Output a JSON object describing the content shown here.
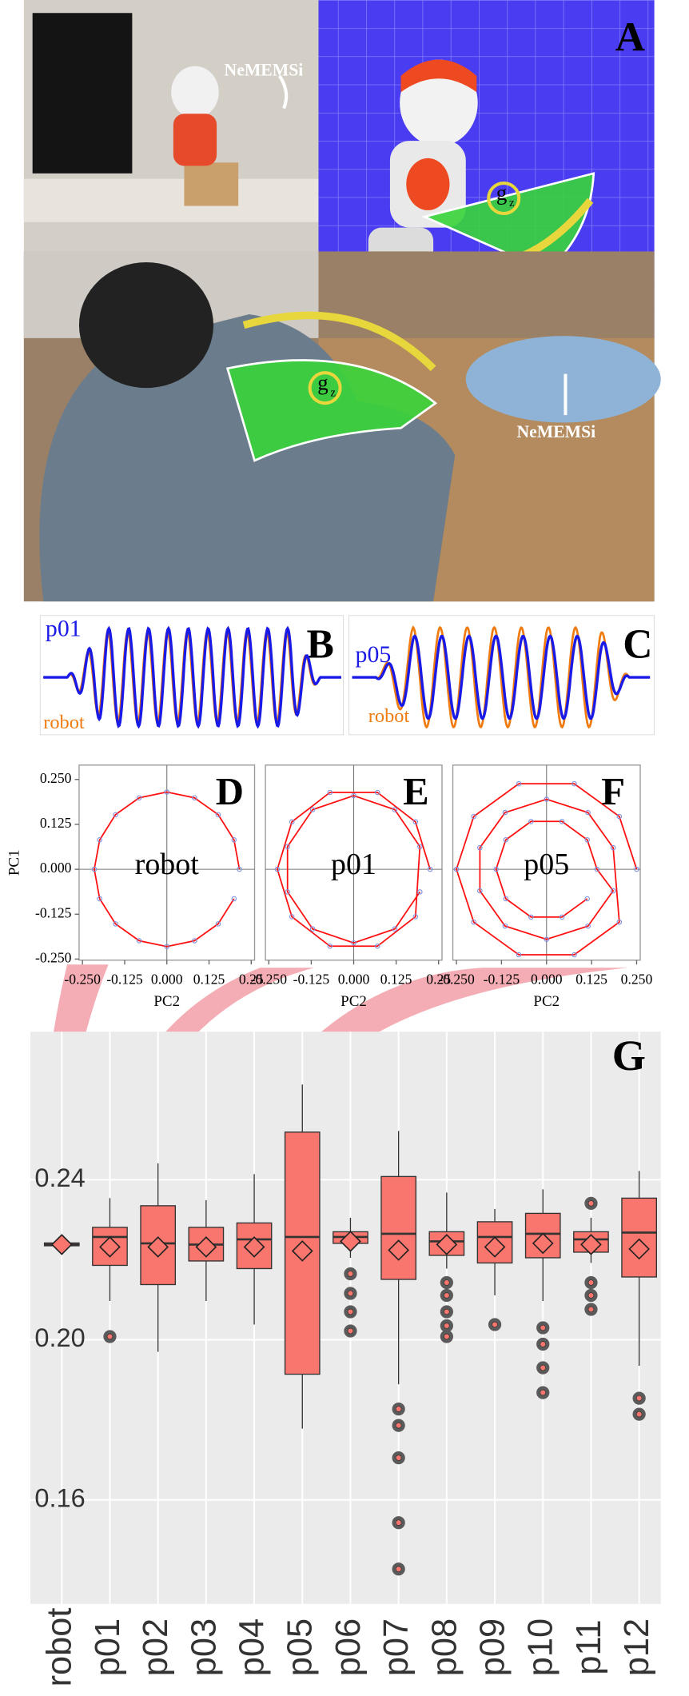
{
  "figure": {
    "panel_labels": [
      "A",
      "B",
      "C"
    ],
    "photo_labels": [
      "NeMEMSi",
      "NeMEMSi"
    ],
    "gyro": "g",
    "gyro_sub": "z",
    "trace_labels_b": [
      "p01",
      "robot"
    ],
    "trace_labels_c": [
      "p05",
      "robot"
    ]
  },
  "chart_data": [
    {
      "type": "pca",
      "panel": "D",
      "annotation": "robot",
      "xlabel": "PC2",
      "ylabel": "PC1",
      "xlim": [
        -0.26,
        0.26
      ],
      "ylim": [
        -0.253,
        0.29
      ],
      "xticks": [
        {
          "value": -0.25,
          "label": "-0.250"
        },
        {
          "value": -0.125,
          "label": "-0.125"
        },
        {
          "value": 0,
          "label": "0.000"
        },
        {
          "value": 0.125,
          "label": "0.125"
        },
        0.25
      ],
      "yticks": [
        {
          "value": 0.25,
          "label": "0.250"
        },
        {
          "value": 0.125,
          "label": "0.125"
        },
        {
          "value": 0,
          "label": "0.000"
        },
        {
          "value": -0.125,
          "label": "-0.125"
        },
        {
          "value": -0.25,
          "label": "-0.250"
        }
      ],
      "series": [
        {
          "color": "#ff1010",
          "point_color": "#7f8fe0",
          "x": [
            0.215,
            0.199,
            0.152,
            0.082,
            0,
            -0.082,
            -0.152,
            -0.199,
            -0.215,
            -0.199,
            -0.152,
            -0.082,
            0,
            0.082,
            0.152,
            0.199
          ],
          "y": [
            0,
            0.082,
            0.152,
            0.199,
            0.215,
            0.199,
            0.152,
            0.082,
            0,
            -0.082,
            -0.152,
            -0.199,
            -0.215,
            -0.199,
            -0.152,
            -0.082
          ]
        }
      ]
    },
    {
      "type": "pca",
      "panel": "E",
      "annotation": "p01",
      "xlabel": "PC2",
      "xlim": [
        -0.26,
        0.26
      ],
      "ylim": [
        -0.253,
        0.29
      ],
      "xticks": [
        {
          "value": -0.25,
          "label": "-0.250"
        },
        {
          "value": -0.125,
          "label": "-0.125"
        },
        {
          "value": 0,
          "label": "0.000"
        },
        {
          "value": 0.125,
          "label": "0.125"
        },
        0.25
      ],
      "series": [
        {
          "color": "#ff1010",
          "point_color": "#7f8fe0",
          "x": [
            0.225,
            0.182,
            0.07,
            -0.07,
            -0.182,
            -0.225,
            -0.182,
            -0.07,
            0.07,
            0.182,
            0.195,
            0.121,
            0,
            -0.121,
            -0.195,
            -0.195,
            -0.121,
            0,
            0.121,
            0.195
          ],
          "y": [
            0,
            0.132,
            0.214,
            0.214,
            0.132,
            0,
            -0.132,
            -0.214,
            -0.214,
            -0.132,
            0.063,
            0.166,
            0.205,
            0.166,
            0.063,
            -0.063,
            -0.166,
            -0.205,
            -0.166,
            -0.063
          ]
        }
      ]
    },
    {
      "type": "pca",
      "panel": "F",
      "annotation": "p05",
      "xlabel": "PC2",
      "xlim": [
        -0.26,
        0.26
      ],
      "ylim": [
        -0.253,
        0.29
      ],
      "xticks": [
        {
          "value": -0.25,
          "label": "-0.250"
        },
        {
          "value": -0.125,
          "label": "-0.125"
        },
        {
          "value": 0,
          "label": "0.000"
        },
        {
          "value": 0.125,
          "label": "0.125"
        },
        {
          "value": 0.25,
          "label": "0.250"
        }
      ],
      "series": [
        {
          "color": "#ff1010",
          "point_color": "#7f8fe0",
          "x": [
            0.25,
            0.202,
            0.077,
            -0.077,
            -0.202,
            -0.25,
            -0.202,
            -0.077,
            0.077,
            0.202,
            0.185,
            0.115,
            0,
            -0.115,
            -0.185,
            -0.185,
            -0.115,
            0,
            0.115,
            0.185,
            0.14,
            0.113,
            0.043,
            -0.043,
            -0.113,
            -0.14,
            -0.113,
            -0.043,
            0.043,
            0.113
          ],
          "y": [
            0,
            0.147,
            0.238,
            0.238,
            0.147,
            0,
            -0.147,
            -0.238,
            -0.238,
            -0.147,
            0.06,
            0.158,
            0.195,
            0.158,
            0.06,
            -0.06,
            -0.158,
            -0.195,
            -0.158,
            -0.06,
            0,
            0.082,
            0.133,
            0.133,
            0.082,
            0,
            -0.082,
            -0.133,
            -0.133,
            -0.082
          ]
        }
      ]
    },
    {
      "type": "box",
      "panel": "G",
      "color": "#f8766d",
      "outlier_color": "#5a5a5a",
      "grid": true,
      "categories": [
        "robot",
        "p01",
        "p02",
        "p03",
        "p04",
        "p05",
        "p06",
        "p07",
        "p08",
        "p09",
        "p10",
        "p11",
        "p12"
      ],
      "whislo": [
        0.2228,
        0.2097,
        0.197,
        0.2097,
        0.2038,
        0.1778,
        0.2205,
        0.1889,
        0.2178,
        0.2111,
        0.2097,
        0.2192,
        0.1935
      ],
      "q1": [
        0.2235,
        0.2186,
        0.2138,
        0.2197,
        0.2178,
        0.1914,
        0.2241,
        0.2151,
        0.2211,
        0.2192,
        0.2205,
        0.2219,
        0.2157
      ],
      "med": [
        0.2238,
        0.2257,
        0.2241,
        0.2238,
        0.2251,
        0.2257,
        0.2257,
        0.2265,
        0.2246,
        0.2257,
        0.2265,
        0.2251,
        0.2268
      ],
      "q3": [
        0.2242,
        0.2281,
        0.2335,
        0.2281,
        0.2292,
        0.2519,
        0.227,
        0.2408,
        0.227,
        0.2295,
        0.2316,
        0.227,
        0.2354
      ],
      "whishi": [
        0.2248,
        0.2354,
        0.2441,
        0.2349,
        0.2414,
        0.2638,
        0.2305,
        0.2522,
        0.2368,
        0.2327,
        0.2376,
        0.2305,
        0.2422
      ],
      "mean": [
        0.2238,
        0.2232,
        0.2232,
        0.2232,
        0.2232,
        0.2222,
        0.2246,
        0.2224,
        0.2238,
        0.2232,
        0.2241,
        0.2238,
        0.2227
      ],
      "outliers": [
        [],
        [
          0.2008
        ],
        [],
        [],
        [],
        [],
        [
          0.2165,
          0.2116,
          0.207,
          0.2022
        ],
        [
          0.1827,
          0.1786,
          0.1705,
          0.1543,
          0.1427
        ],
        [
          0.2143,
          0.2111,
          0.207,
          0.2035,
          0.2008
        ],
        [
          0.2038
        ],
        [
          0.203,
          0.1989,
          0.193,
          0.1868
        ],
        [
          0.2341,
          0.2143,
          0.2111,
          0.2076
        ],
        [
          0.1854,
          0.1814
        ]
      ],
      "ylim": [
        0.134,
        0.277
      ],
      "yticks": [
        0.16,
        {
          "value": 0.2,
          "label": "0.20"
        },
        0.24
      ]
    }
  ]
}
